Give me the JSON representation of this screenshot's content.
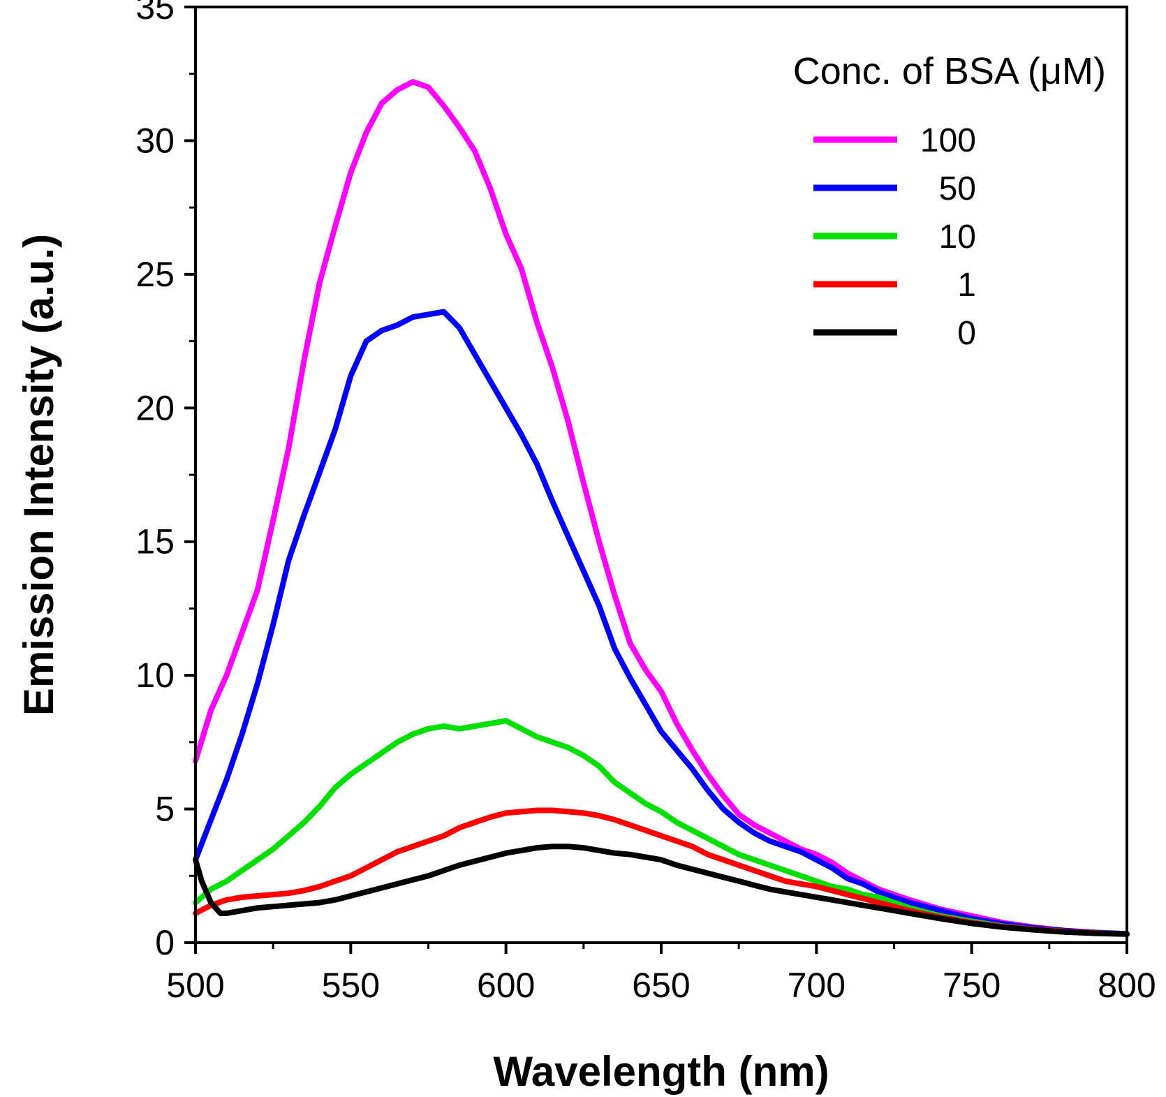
{
  "chart_data": {
    "type": "line",
    "xlabel": "Wavelength (nm)",
    "ylabel": "Emission Intensity (a.u.)",
    "xlim": [
      500,
      800
    ],
    "ylim": [
      0,
      35
    ],
    "xticks": [
      500,
      550,
      600,
      650,
      700,
      750,
      800
    ],
    "yticks": [
      0,
      5,
      10,
      15,
      20,
      25,
      30,
      35
    ],
    "grid": false,
    "legend": {
      "title": "Conc. of BSA (μM)",
      "placement": "top-right"
    },
    "series": [
      {
        "name": "100",
        "color": "#ff00ff",
        "x": [
          500,
          505,
          510,
          515,
          520,
          525,
          530,
          535,
          540,
          545,
          550,
          555,
          560,
          565,
          570,
          575,
          580,
          585,
          590,
          595,
          600,
          605,
          610,
          615,
          620,
          625,
          630,
          635,
          640,
          645,
          650,
          655,
          660,
          665,
          670,
          675,
          680,
          685,
          690,
          695,
          700,
          705,
          710,
          715,
          720,
          730,
          740,
          750,
          760,
          770,
          780,
          790,
          800
        ],
        "y": [
          6.8,
          8.7,
          10.0,
          11.6,
          13.2,
          15.8,
          18.5,
          21.8,
          24.7,
          26.8,
          28.8,
          30.3,
          31.4,
          31.9,
          32.2,
          32.0,
          31.3,
          30.5,
          29.6,
          28.2,
          26.5,
          25.2,
          23.2,
          21.5,
          19.5,
          17.2,
          15.0,
          13.0,
          11.2,
          10.2,
          9.4,
          8.2,
          7.2,
          6.3,
          5.5,
          4.8,
          4.4,
          4.1,
          3.8,
          3.5,
          3.3,
          3.0,
          2.6,
          2.3,
          2.0,
          1.6,
          1.25,
          1.0,
          0.75,
          0.58,
          0.45,
          0.38,
          0.33
        ]
      },
      {
        "name": "50",
        "color": "#0000ff",
        "x": [
          500,
          505,
          510,
          515,
          520,
          525,
          530,
          535,
          540,
          545,
          550,
          555,
          560,
          565,
          570,
          575,
          580,
          585,
          590,
          595,
          600,
          605,
          610,
          615,
          620,
          625,
          630,
          635,
          640,
          645,
          650,
          655,
          660,
          665,
          670,
          675,
          680,
          685,
          690,
          695,
          700,
          705,
          710,
          715,
          720,
          730,
          740,
          750,
          760,
          770,
          780,
          790,
          800
        ],
        "y": [
          3.1,
          4.6,
          6.1,
          7.8,
          9.7,
          11.9,
          14.3,
          16.0,
          17.6,
          19.2,
          21.2,
          22.5,
          22.9,
          23.1,
          23.4,
          23.5,
          23.6,
          23.0,
          22.0,
          21.0,
          20.0,
          19.0,
          17.9,
          16.5,
          15.2,
          13.9,
          12.6,
          11.0,
          9.9,
          8.9,
          7.9,
          7.2,
          6.5,
          5.7,
          5.0,
          4.5,
          4.1,
          3.8,
          3.6,
          3.4,
          3.1,
          2.8,
          2.4,
          2.2,
          1.9,
          1.5,
          1.2,
          0.9,
          0.7,
          0.55,
          0.45,
          0.38,
          0.33
        ]
      },
      {
        "name": "10",
        "color": "#00e000",
        "x": [
          500,
          505,
          510,
          515,
          520,
          525,
          530,
          535,
          540,
          545,
          550,
          555,
          560,
          565,
          570,
          575,
          580,
          585,
          590,
          595,
          600,
          605,
          610,
          615,
          620,
          625,
          630,
          635,
          640,
          645,
          650,
          655,
          660,
          665,
          670,
          675,
          680,
          685,
          690,
          695,
          700,
          705,
          710,
          715,
          720,
          730,
          740,
          750,
          760,
          770,
          780,
          790,
          800
        ],
        "y": [
          1.5,
          2.0,
          2.3,
          2.7,
          3.1,
          3.5,
          4.0,
          4.5,
          5.1,
          5.8,
          6.3,
          6.7,
          7.1,
          7.5,
          7.8,
          8.0,
          8.1,
          8.0,
          8.1,
          8.2,
          8.3,
          8.0,
          7.7,
          7.5,
          7.3,
          7.0,
          6.6,
          6.0,
          5.6,
          5.2,
          4.9,
          4.5,
          4.2,
          3.9,
          3.6,
          3.3,
          3.1,
          2.9,
          2.7,
          2.5,
          2.3,
          2.1,
          2.0,
          1.8,
          1.7,
          1.3,
          1.0,
          0.8,
          0.62,
          0.5,
          0.42,
          0.36,
          0.32
        ]
      },
      {
        "name": "1",
        "color": "#ff0000",
        "x": [
          500,
          505,
          510,
          515,
          520,
          525,
          530,
          535,
          540,
          545,
          550,
          555,
          560,
          565,
          570,
          575,
          580,
          585,
          590,
          595,
          600,
          605,
          610,
          615,
          620,
          625,
          630,
          635,
          640,
          645,
          650,
          655,
          660,
          665,
          670,
          675,
          680,
          685,
          690,
          695,
          700,
          705,
          710,
          715,
          720,
          730,
          740,
          750,
          760,
          770,
          780,
          790,
          800
        ],
        "y": [
          1.1,
          1.4,
          1.6,
          1.7,
          1.75,
          1.8,
          1.85,
          1.95,
          2.1,
          2.3,
          2.5,
          2.8,
          3.1,
          3.4,
          3.6,
          3.8,
          4.0,
          4.3,
          4.5,
          4.7,
          4.85,
          4.9,
          4.95,
          4.95,
          4.9,
          4.85,
          4.75,
          4.6,
          4.4,
          4.2,
          4.0,
          3.8,
          3.6,
          3.3,
          3.1,
          2.9,
          2.7,
          2.5,
          2.3,
          2.2,
          2.1,
          1.95,
          1.8,
          1.65,
          1.5,
          1.2,
          0.95,
          0.75,
          0.6,
          0.5,
          0.42,
          0.36,
          0.32
        ]
      },
      {
        "name": "0",
        "color": "#000000",
        "x": [
          500,
          502,
          505,
          508,
          510,
          515,
          520,
          525,
          530,
          535,
          540,
          545,
          550,
          555,
          560,
          565,
          570,
          575,
          580,
          585,
          590,
          595,
          600,
          605,
          610,
          615,
          620,
          625,
          630,
          635,
          640,
          645,
          650,
          655,
          660,
          665,
          670,
          675,
          680,
          685,
          690,
          695,
          700,
          705,
          710,
          715,
          720,
          730,
          740,
          750,
          760,
          770,
          780,
          790,
          800
        ],
        "y": [
          3.1,
          2.3,
          1.5,
          1.1,
          1.1,
          1.2,
          1.3,
          1.35,
          1.4,
          1.45,
          1.5,
          1.6,
          1.75,
          1.9,
          2.05,
          2.2,
          2.35,
          2.5,
          2.7,
          2.9,
          3.05,
          3.2,
          3.35,
          3.45,
          3.55,
          3.6,
          3.6,
          3.55,
          3.45,
          3.35,
          3.3,
          3.2,
          3.1,
          2.9,
          2.75,
          2.6,
          2.45,
          2.3,
          2.15,
          2.0,
          1.9,
          1.8,
          1.7,
          1.6,
          1.5,
          1.4,
          1.3,
          1.1,
          0.9,
          0.72,
          0.58,
          0.48,
          0.4,
          0.35,
          0.32
        ]
      }
    ]
  }
}
